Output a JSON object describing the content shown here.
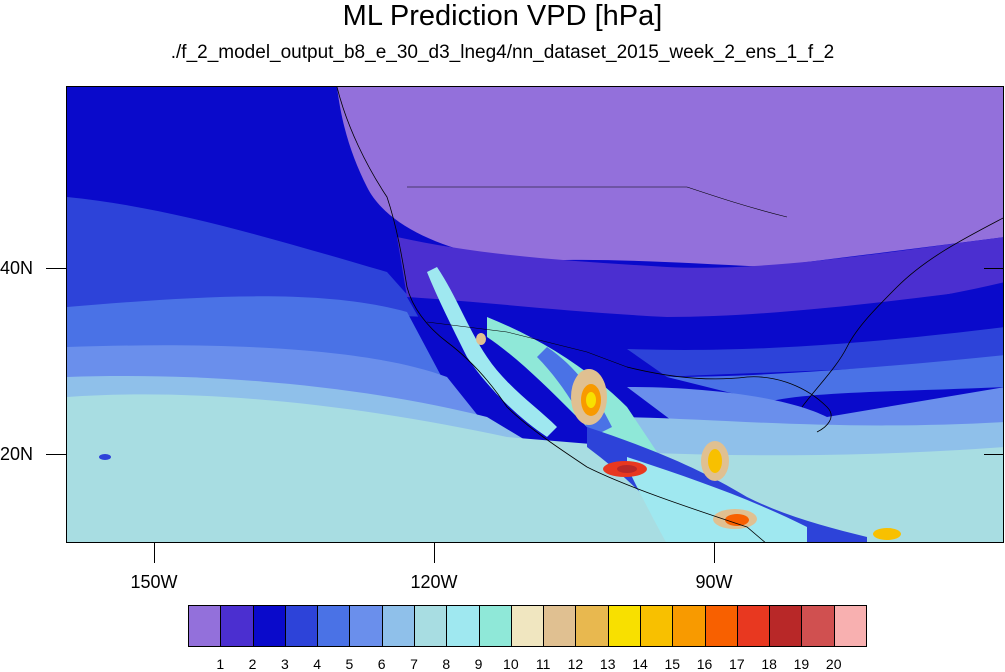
{
  "title": "ML Prediction VPD [hPa]",
  "subtitle": "./f_2_model_output_b8_e_30_d3_lneg4/nn_dataset_2015_week_2_ens_1_f_2",
  "lat_labels": [
    "40N",
    "20N"
  ],
  "lon_labels": [
    "150W",
    "120W",
    "90W"
  ],
  "colorbar": {
    "labels": [
      "1",
      "2",
      "3",
      "4",
      "5",
      "6",
      "7",
      "8",
      "9",
      "10",
      "11",
      "12",
      "13",
      "14",
      "15",
      "16",
      "17",
      "18",
      "19",
      "20"
    ],
    "colors": [
      "#9370db",
      "#4b2fd0",
      "#0a0acb",
      "#2d43d9",
      "#4a72e6",
      "#6a8fec",
      "#8fc0ea",
      "#a8dde2",
      "#9fe8f0",
      "#8fe8d8",
      "#f0e6c0",
      "#e0c091",
      "#e8b84f",
      "#f8e000",
      "#f8c000",
      "#f89a00",
      "#f86000",
      "#e83820",
      "#b82828",
      "#d05050",
      "#f8b0b0"
    ]
  },
  "map": {
    "projection": "cylindrical equidistant",
    "variable": "VPD",
    "units": "hPa",
    "colors": {
      "ocean_north": "#0a0acb",
      "ocean_mid": "#4a72e6",
      "ocean_south": "#8fc0ea",
      "land_north": "#9370db",
      "land_mid": "#4b2fd0"
    }
  }
}
